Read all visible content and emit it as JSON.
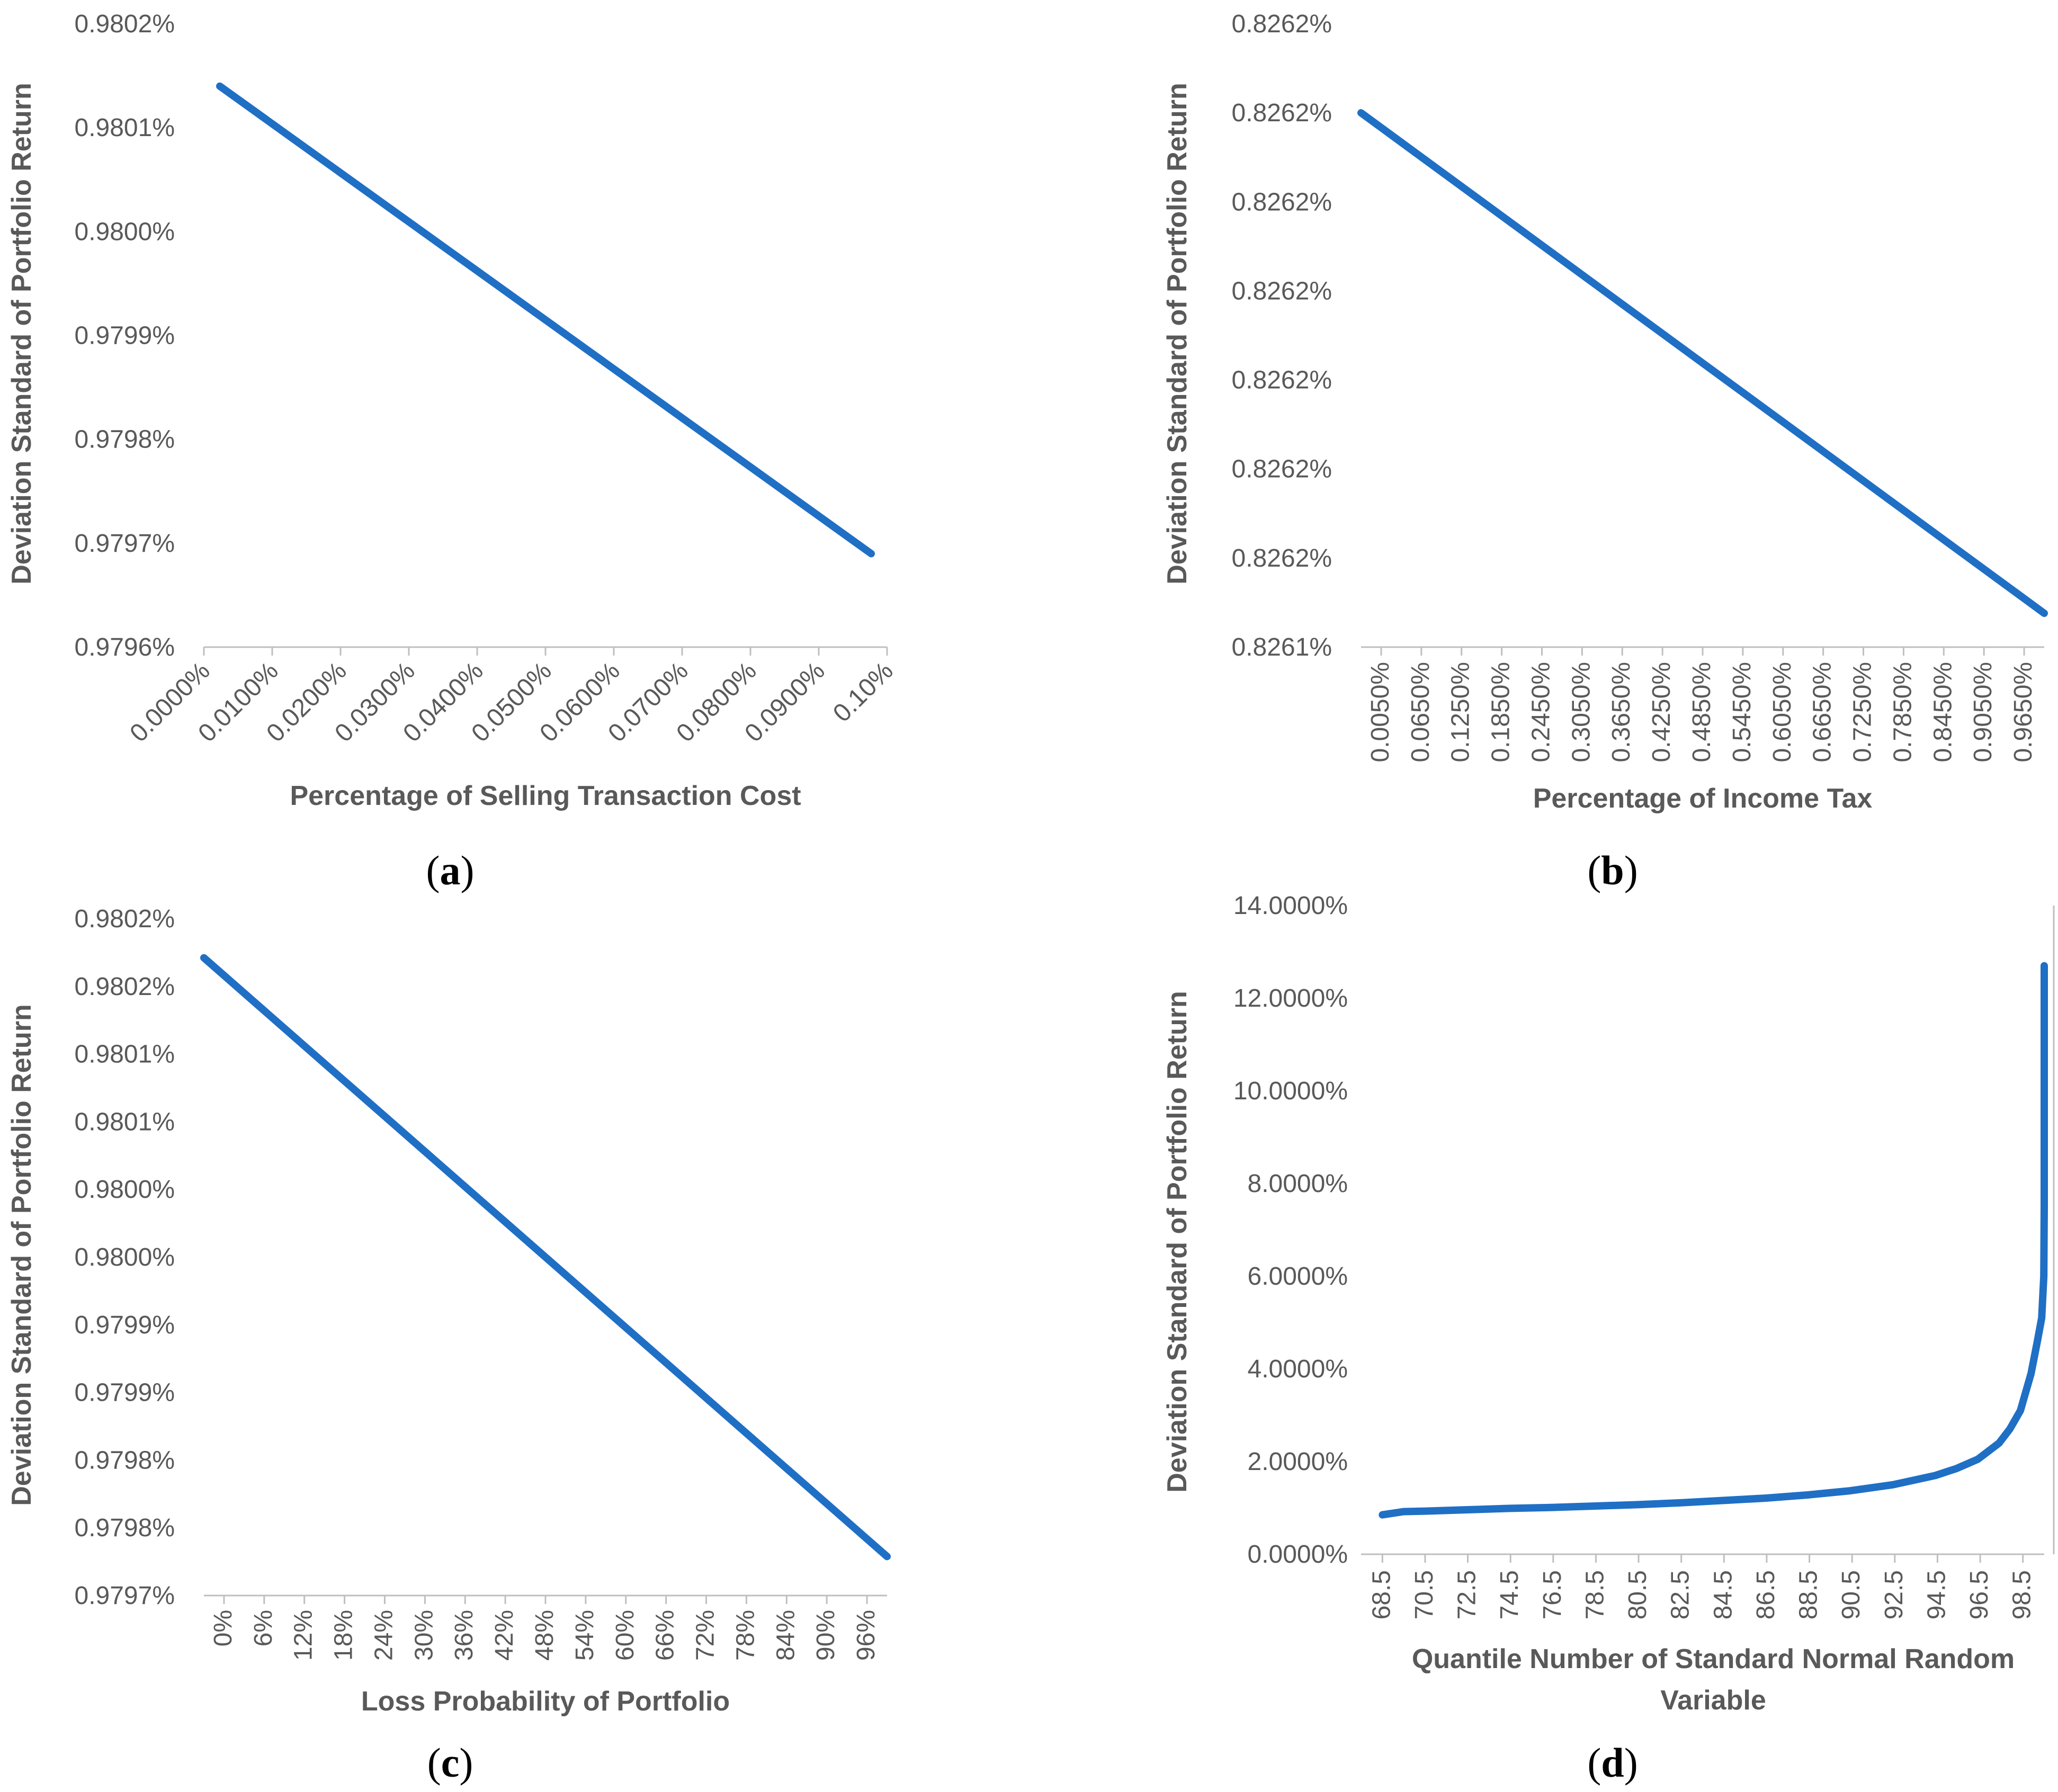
{
  "chart_data": [
    {
      "type": "line",
      "panel": "a",
      "caption_letter": "a",
      "title": "",
      "xlabel": "Percentage of Selling Transaction  Cost",
      "ylabel": "Deviation Standard of Portfolio Return",
      "x_tick_labels": [
        "0.0000%",
        "0.0100%",
        "0.0200%",
        "0.0300%",
        "0.0400%",
        "0.0500%",
        "0.0600%",
        "0.0700%",
        "0.0800%",
        "0.0900%",
        "0.10%"
      ],
      "y_tick_labels": [
        "0.9796%",
        "0.9797%",
        "0.9798%",
        "0.9799%",
        "0.9800%",
        "0.9801%",
        "0.9802%"
      ],
      "ylim": [
        0.9796,
        0.9802
      ],
      "x": [
        0.0,
        0.1
      ],
      "y": [
        0.98014,
        0.97969
      ],
      "series_color": "#1f6fc5"
    },
    {
      "type": "line",
      "panel": "b",
      "caption_letter": "b",
      "title": "",
      "xlabel": "Percentage of Income Tax",
      "ylabel": "Deviation Standard of Portfolio Return",
      "x_tick_labels": [
        "0.0050%",
        "0.0650%",
        "0.1250%",
        "0.1850%",
        "0.2450%",
        "0.3050%",
        "0.3650%",
        "0.4250%",
        "0.4850%",
        "0.5450%",
        "0.6050%",
        "0.6650%",
        "0.7250%",
        "0.7850%",
        "0.8450%",
        "0.9050%",
        "0.9650%"
      ],
      "y_tick_labels": [
        "0.8261%",
        "0.8262%",
        "0.8262%",
        "0.8262%",
        "0.8262%",
        "0.8262%",
        "0.8262%",
        "0.8262%"
      ],
      "ylim": [
        0,
        7
      ],
      "y_units_note": "tick index units (labels rounded in source)",
      "x": [
        0.005,
        1.0
      ],
      "y": [
        6.0,
        0.38
      ],
      "series_color": "#1f6fc5"
    },
    {
      "type": "line",
      "panel": "c",
      "caption_letter": "c",
      "title": "",
      "xlabel": "Loss Probability  of Portfolio",
      "ylabel": "Deviation Standard of Portfolio Return",
      "x_tick_labels": [
        "0%",
        "6%",
        "12%",
        "18%",
        "24%",
        "30%",
        "36%",
        "42%",
        "48%",
        "54%",
        "60%",
        "66%",
        "72%",
        "78%",
        "84%",
        "90%",
        "96%"
      ],
      "y_tick_labels": [
        "0.9797%",
        "0.9798%",
        "0.9798%",
        "0.9799%",
        "0.9799%",
        "0.9800%",
        "0.9800%",
        "0.9801%",
        "0.9801%",
        "0.9802%",
        "0.9802%"
      ],
      "ylim": [
        0.9797,
        0.98022
      ],
      "x": [
        0,
        100
      ],
      "y": [
        0.98019,
        0.97973
      ],
      "series_color": "#1f6fc5"
    },
    {
      "type": "line",
      "panel": "d",
      "caption_letter": "d",
      "title": "",
      "xlabel": "Quantile  Number of Standard  Normal Random Variable",
      "ylabel": "Deviation Standard of Portfolio Return",
      "x_tick_labels": [
        "68.5",
        "70.5",
        "72.5",
        "74.5",
        "76.5",
        "78.5",
        "80.5",
        "82.5",
        "84.5",
        "86.5",
        "88.5",
        "90.5",
        "92.5",
        "94.5",
        "96.5",
        "98.5"
      ],
      "y_tick_labels": [
        "0.0000%",
        "2.0000%",
        "4.0000%",
        "6.0000%",
        "8.0000%",
        "10.0000%",
        "12.0000%",
        "14.0000%"
      ],
      "xlim": [
        68.5,
        100.5
      ],
      "ylim": [
        0,
        14
      ],
      "x": [
        68.5,
        69.5,
        70.5,
        72.5,
        74.5,
        76.5,
        78.5,
        80.5,
        82.5,
        84.5,
        86.5,
        88.5,
        90.5,
        92.5,
        94.5,
        95.5,
        96.5,
        97.5,
        98.0,
        98.5,
        99.0,
        99.3,
        99.5,
        99.6,
        99.7,
        99.75,
        99.8,
        99.85,
        99.9
      ],
      "y": [
        0.85,
        0.92,
        0.93,
        0.96,
        0.99,
        1.01,
        1.04,
        1.07,
        1.11,
        1.16,
        1.21,
        1.28,
        1.37,
        1.5,
        1.7,
        1.85,
        2.05,
        2.4,
        2.7,
        3.1,
        3.9,
        4.6,
        5.1,
        6.0,
        7.5,
        9.0,
        10.6,
        11.8,
        12.7
      ],
      "series_color": "#1f6fc5"
    }
  ]
}
